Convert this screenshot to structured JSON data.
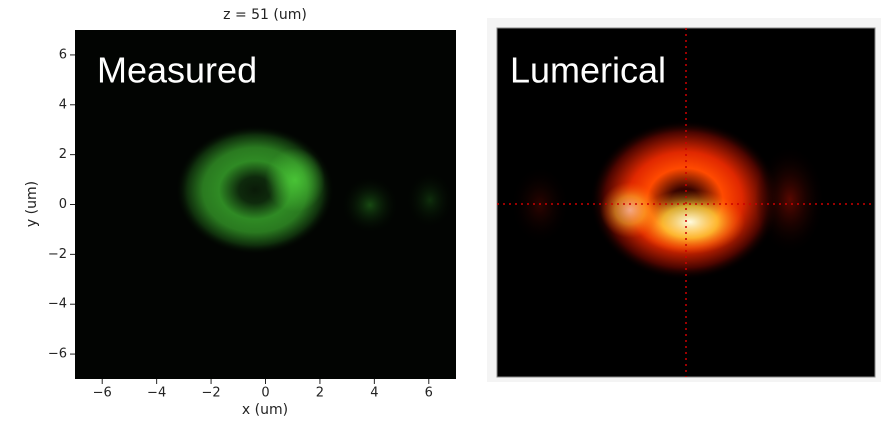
{
  "left_panel": {
    "title": "z = 51 (um)",
    "xlabel": "x (um)",
    "ylabel": "y (um)",
    "overlay_label": "Measured",
    "xlim": [
      -7,
      7
    ],
    "ylim": [
      -7,
      7
    ],
    "xticks": [
      {
        "value": -6,
        "label": "−6"
      },
      {
        "value": -4,
        "label": "−4"
      },
      {
        "value": -2,
        "label": "−2"
      },
      0,
      2,
      4,
      6
    ],
    "yticks": [
      {
        "value": -6,
        "label": "−6"
      },
      {
        "value": -4,
        "label": "−4"
      },
      {
        "value": -2,
        "label": "−2"
      },
      0,
      2,
      4,
      6
    ]
  },
  "right_panel": {
    "overlay_label": "Lumerical"
  }
}
